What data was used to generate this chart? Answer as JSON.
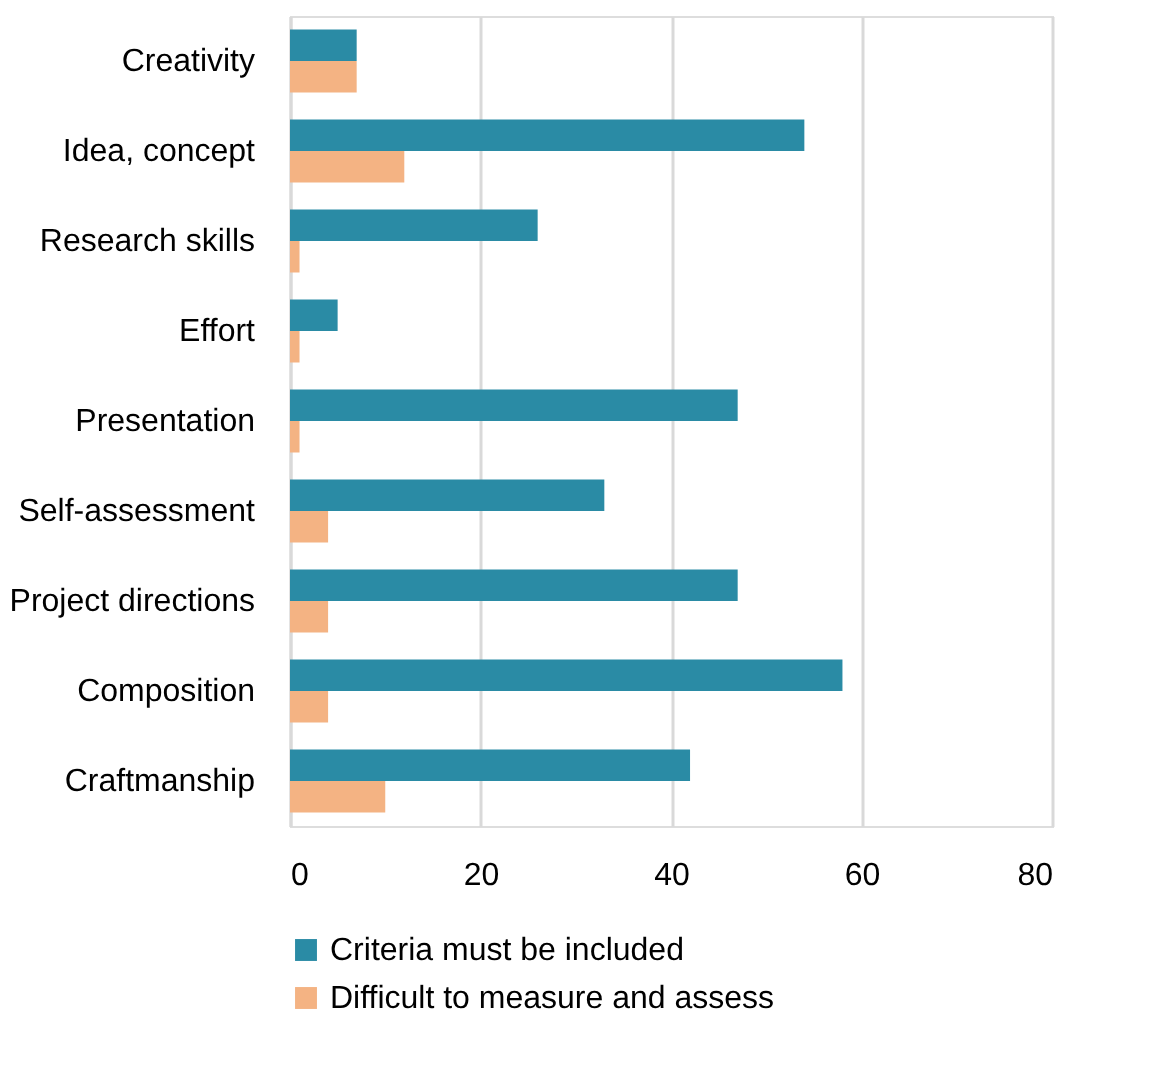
{
  "chart_data": {
    "type": "bar",
    "orientation": "horizontal",
    "categories": [
      "Creativity",
      "Idea, concept",
      "Research skills",
      "Effort",
      "Presentation",
      "Self-assessment",
      "Project directions",
      "Composition",
      "Craftmanship"
    ],
    "series": [
      {
        "name": "Criteria must be included",
        "color": "#2a8ba5",
        "values": [
          7,
          54,
          26,
          5,
          47,
          33,
          47,
          58,
          42
        ]
      },
      {
        "name": "Difficult to measure and assess",
        "color": "#f4b383",
        "values": [
          7,
          12,
          1,
          1,
          1,
          4,
          4,
          4,
          10
        ]
      }
    ],
    "xlim": [
      0,
      80
    ],
    "xticks": [
      0,
      20,
      40,
      60,
      80
    ],
    "grid": "x",
    "legend": "bottom"
  }
}
